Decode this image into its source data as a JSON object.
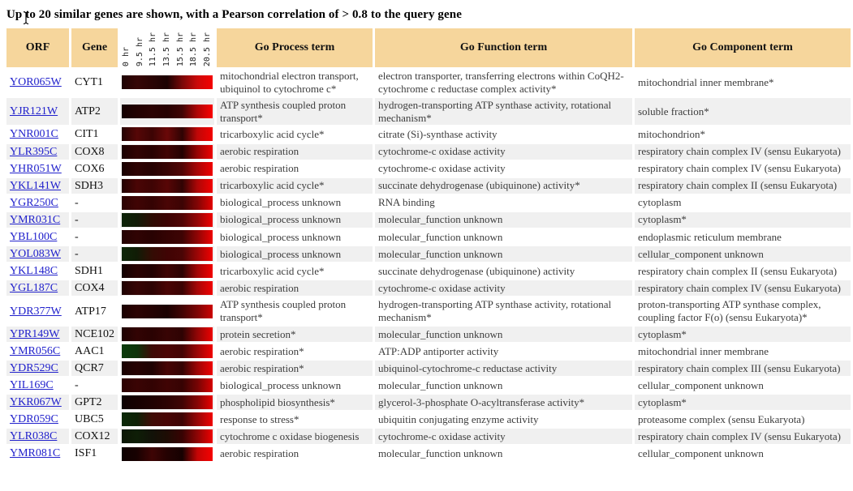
{
  "title": "Up to 20 similar genes are shown, with a Pearson correlation of > 0.8 to the query gene",
  "colors": {
    "header_bg": "#f6d69c",
    "alt_row_bg": "#f0f0f0",
    "link": "#2222cc",
    "heat_bright": "#f40000"
  },
  "table": {
    "headers": {
      "orf": "ORF",
      "gene": "Gene",
      "process": "Go Process term",
      "function": "Go Function term",
      "component": "Go Component term"
    },
    "time_labels": [
      "0 hr",
      "9.5 hr",
      "11.5 hr",
      "13.5 hr",
      "15.5 hr",
      "18.5 hr",
      "20.5 hr"
    ],
    "rows": [
      {
        "orf": "YOR065W",
        "gene": "CYT1",
        "process": "mitochondrial electron transport, ubiquinol to cytochrome c*",
        "function": "electron transporter, transferring electrons within CoQH2-cytochrome c reductase complex activity*",
        "component": "mitochondrial inner membrane*",
        "heatmap": [
          "#1e0303",
          "#360606",
          "#2a0404",
          "#1c0202",
          "#7a0808",
          "#cc0909",
          "#f40202"
        ]
      },
      {
        "orf": "YJR121W",
        "gene": "ATP2",
        "process": "ATP synthesis coupled proton transport*",
        "function": "hydrogen-transporting ATP synthase activity, rotational mechanism*",
        "component": "soluble fraction*",
        "heatmap": [
          "#140101",
          "#220202",
          "#2c0303",
          "#260202",
          "#400404",
          "#b00505",
          "#fa0202"
        ]
      },
      {
        "orf": "YNR001C",
        "gene": "CIT1",
        "process": "tricarboxylic acid cycle*",
        "function": "citrate (Si)-synthase activity",
        "component": "mitochondrion*",
        "heatmap": [
          "#240202",
          "#560707",
          "#3c0404",
          "#6a0808",
          "#2e0303",
          "#c00707",
          "#f20101"
        ]
      },
      {
        "orf": "YLR395C",
        "gene": "COX8",
        "process": "aerobic respiration",
        "function": "cytochrome-c oxidase activity",
        "component": "respiratory chain complex IV (sensu Eukaryota)",
        "heatmap": [
          "#1a0101",
          "#320303",
          "#280202",
          "#420505",
          "#240202",
          "#980505",
          "#ee0101"
        ]
      },
      {
        "orf": "YHR051W",
        "gene": "COX6",
        "process": "aerobic respiration",
        "function": "cytochrome-c oxidase activity",
        "component": "respiratory chain complex IV (sensu Eukaryota)",
        "heatmap": [
          "#180101",
          "#2e0303",
          "#260202",
          "#380404",
          "#520606",
          "#aa0707",
          "#f00101"
        ]
      },
      {
        "orf": "YKL141W",
        "gene": "SDH3",
        "process": "tricarboxylic acid cycle*",
        "function": "succinate dehydrogenase (ubiquinone) activity*",
        "component": "respiratory chain complex II (sensu Eukaryota)",
        "heatmap": [
          "#220202",
          "#4a0505",
          "#3e0404",
          "#580606",
          "#300303",
          "#ae0707",
          "#f20101"
        ]
      },
      {
        "orf": "YGR250C",
        "gene": "-",
        "process": "biological_process unknown",
        "function": "RNA binding",
        "component": "cytoplasm",
        "heatmap": [
          "#2a0202",
          "#400404",
          "#340303",
          "#4a0505",
          "#3c0404",
          "#820505",
          "#e20101"
        ]
      },
      {
        "orf": "YMR031C",
        "gene": "-",
        "process": "biological_process unknown",
        "function": "molecular_function unknown",
        "component": "cytoplasm*",
        "heatmap": [
          "#0d2408",
          "#121c08",
          "#2e0c04",
          "#3c0404",
          "#500505",
          "#960606",
          "#f00101"
        ]
      },
      {
        "orf": "YBL100C",
        "gene": "-",
        "process": "biological_process unknown",
        "function": "molecular_function unknown",
        "component": "endoplasmic reticulum membrane",
        "heatmap": [
          "#240202",
          "#300303",
          "#280202",
          "#340303",
          "#3e0404",
          "#900505",
          "#ee0101"
        ]
      },
      {
        "orf": "YOL083W",
        "gene": "-",
        "process": "biological_process unknown",
        "function": "molecular_function unknown",
        "component": "cellular_component unknown",
        "heatmap": [
          "#0e2608",
          "#101c06",
          "#340c04",
          "#400404",
          "#4a0505",
          "#9c0606",
          "#f00101"
        ]
      },
      {
        "orf": "YKL148C",
        "gene": "SDH1",
        "process": "tricarboxylic acid cycle*",
        "function": "succinate dehydrogenase (ubiquinone) activity",
        "component": "respiratory chain complex II (sensu Eukaryota)",
        "heatmap": [
          "#120101",
          "#2a0202",
          "#220202",
          "#400404",
          "#2c0303",
          "#a40606",
          "#f20101"
        ]
      },
      {
        "orf": "YGL187C",
        "gene": "COX4",
        "process": "aerobic respiration",
        "function": "cytochrome-c oxidase activity",
        "component": "respiratory chain complex IV (sensu Eukaryota)",
        "heatmap": [
          "#1e0202",
          "#360404",
          "#2c0303",
          "#4a0505",
          "#3a0404",
          "#a80707",
          "#f00101"
        ]
      },
      {
        "orf": "YDR377W",
        "gene": "ATP17",
        "process": "ATP synthesis coupled proton transport*",
        "function": "hydrogen-transporting ATP synthase activity, rotational mechanism*",
        "component": "proton-transporting ATP synthase complex, coupling factor F(o) (sensu Eukaryota)*",
        "heatmap": [
          "#1a0101",
          "#2c0303",
          "#240202",
          "#1a0101",
          "#420404",
          "#7e0505",
          "#cc0202"
        ]
      },
      {
        "orf": "YPR149W",
        "gene": "NCE102",
        "process": "protein secretion*",
        "function": "molecular_function unknown",
        "component": "cytoplasm*",
        "heatmap": [
          "#1e0202",
          "#320303",
          "#2a0202",
          "#380404",
          "#2e0303",
          "#920606",
          "#ec0101"
        ]
      },
      {
        "orf": "YMR056C",
        "gene": "AAC1",
        "process": "aerobic respiration*",
        "function": "ATP:ADP antiporter activity",
        "component": "mitochondrial inner membrane",
        "heatmap": [
          "#0c3c0c",
          "#0e340a",
          "#3e0a06",
          "#4c0505",
          "#440404",
          "#9c0606",
          "#f00101"
        ]
      },
      {
        "orf": "YDR529C",
        "gene": "QCR7",
        "process": "aerobic respiration*",
        "function": "ubiquinol-cytochrome-c reductase activity",
        "component": "respiratory chain complex III (sensu Eukaryota)",
        "heatmap": [
          "#180101",
          "#260202",
          "#1e0202",
          "#480505",
          "#340303",
          "#9e0606",
          "#ee0101"
        ]
      },
      {
        "orf": "YIL169C",
        "gene": "-",
        "process": "biological_process unknown",
        "function": "molecular_function unknown",
        "component": "cellular_component unknown",
        "heatmap": [
          "#2c0202",
          "#3a0404",
          "#320303",
          "#400404",
          "#360303",
          "#760404",
          "#d60202"
        ]
      },
      {
        "orf": "YKR067W",
        "gene": "GPT2",
        "process": "phospholipid biosynthesis*",
        "function": "glycerol-3-phosphate O-acyltransferase activity*",
        "component": "cytoplasm*",
        "heatmap": [
          "#0c0101",
          "#160101",
          "#200202",
          "#2c0303",
          "#400404",
          "#860505",
          "#e80101"
        ]
      },
      {
        "orf": "YDR059C",
        "gene": "UBC5",
        "process": "response to stress*",
        "function": "ubiquitin conjugating enzyme activity",
        "component": "proteasome complex (sensu Eukaryota)",
        "heatmap": [
          "#0c2a08",
          "#0e2206",
          "#400c06",
          "#480505",
          "#3e0404",
          "#980606",
          "#f00101"
        ]
      },
      {
        "orf": "YLR038C",
        "gene": "COX12",
        "process": "cytochrome c oxidase biogenesis",
        "function": "cytochrome-c oxidase activity",
        "component": "respiratory chain complex IV (sensu Eukaryota)",
        "heatmap": [
          "#0c1605",
          "#0e1e07",
          "#121208",
          "#1e0c04",
          "#380303",
          "#8e0505",
          "#ee0101"
        ]
      },
      {
        "orf": "YMR081C",
        "gene": "ISF1",
        "process": "aerobic respiration",
        "function": "molecular_function unknown",
        "component": "cellular_component unknown",
        "heatmap": [
          "#0e0101",
          "#180101",
          "#3e0404",
          "#240202",
          "#160101",
          "#c40505",
          "#f60202"
        ]
      }
    ]
  }
}
